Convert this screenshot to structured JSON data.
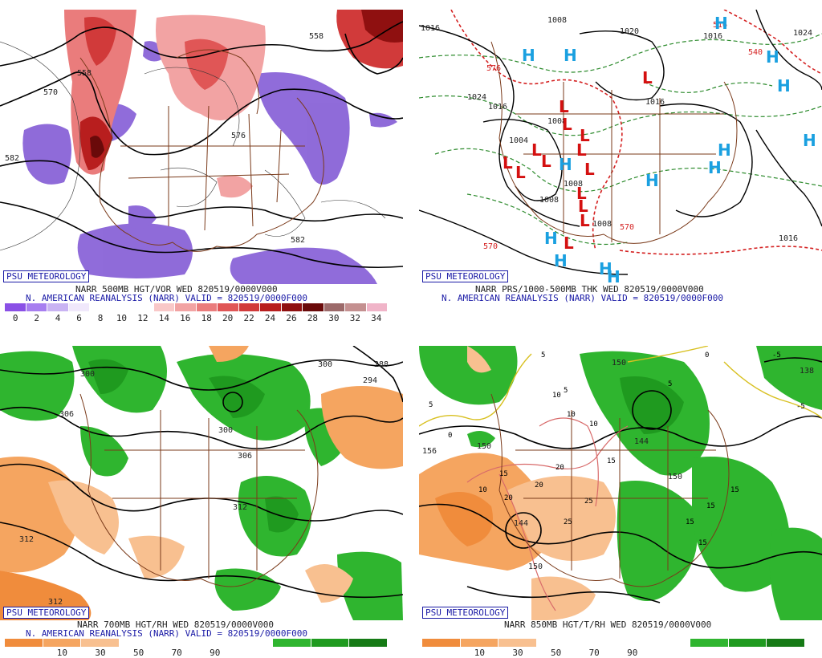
{
  "badge": "PSU METEOROLOGY",
  "reanalysis_line": "N. AMERICAN REANALYSIS (NARR) VALID = 820519/0000F000",
  "panels": {
    "vorticity": {
      "title": "NARR 500MB HGT/VOR WED 820519/0000V000",
      "contour_labels": [
        "558",
        "570",
        "576",
        "582",
        "582",
        "558"
      ],
      "colorbar": {
        "ticks": [
          "0",
          "2",
          "4",
          "6",
          "8",
          "10",
          "12",
          "14",
          "16",
          "18",
          "20",
          "22",
          "24",
          "26",
          "28",
          "30",
          "32",
          "34"
        ],
        "colors": [
          "#8a50e6",
          "#a77ef0",
          "#c9b3f3",
          "#f0e8fb",
          "#ffffff",
          "#ffffff",
          "#ffffff",
          "#f9c8c8",
          "#f2a3a3",
          "#ea7c7c",
          "#e05656",
          "#d13a3a",
          "#b81e1e",
          "#8f1010",
          "#6a0a0a",
          "#9c6a6a",
          "#c49090",
          "#f0b4c8"
        ]
      }
    },
    "pressure": {
      "title": "NARR PRS/1000-500MB THK WED 820519/0000V000",
      "isobar_labels": [
        "1016",
        "1008",
        "1024",
        "1016",
        "1008",
        "1004",
        "1008",
        "1008",
        "1016",
        "1008",
        "1020",
        "1024",
        "1016",
        "1016"
      ],
      "thickness_labels": [
        "516",
        "570",
        "570",
        "576",
        "540"
      ],
      "highs": [
        "H",
        "H",
        "H",
        "H",
        "H",
        "H",
        "H",
        "H",
        "H",
        "H",
        "H",
        "H",
        "H",
        "H"
      ],
      "lows": [
        "L",
        "L",
        "L",
        "L",
        "L",
        "L",
        "L",
        "L",
        "L",
        "L",
        "L",
        "L",
        "L",
        "L"
      ]
    },
    "rh700": {
      "title": "NARR 700MB HGT/RH WED 820519/0000V000",
      "contour_labels": [
        "300",
        "306",
        "300",
        "300",
        "306",
        "312",
        "312",
        "312",
        "288",
        "294"
      ],
      "colorbar": {
        "ticks": [
          "10",
          "30",
          "50",
          "70",
          "90"
        ],
        "colors": [
          "#f08c3c",
          "#f5a560",
          "#f8c090",
          "#ffffff",
          "#ffffff",
          "#ffffff",
          "#ffffff",
          "#2fb52f",
          "#1f9a1f",
          "#157a15"
        ]
      }
    },
    "temp850": {
      "title": "NARR 850MB HGT/T/RH WED 820519/0000V000",
      "height_labels": [
        "150",
        "156",
        "150",
        "144",
        "144",
        "150",
        "150",
        "138"
      ],
      "temp_labels": [
        "5",
        "5",
        "5",
        "5",
        "-5",
        "-5",
        "0",
        "0",
        "10",
        "10",
        "10",
        "10",
        "15",
        "15",
        "15",
        "15",
        "15",
        "15",
        "20",
        "20",
        "20",
        "25",
        "25"
      ],
      "colorbar": {
        "ticks": [
          "10",
          "30",
          "50",
          "70",
          "90"
        ],
        "colors": [
          "#f08c3c",
          "#f5a560",
          "#f8c090",
          "#ffffff",
          "#ffffff",
          "#ffffff",
          "#ffffff",
          "#2fb52f",
          "#1f9a1f",
          "#157a15"
        ]
      }
    }
  }
}
